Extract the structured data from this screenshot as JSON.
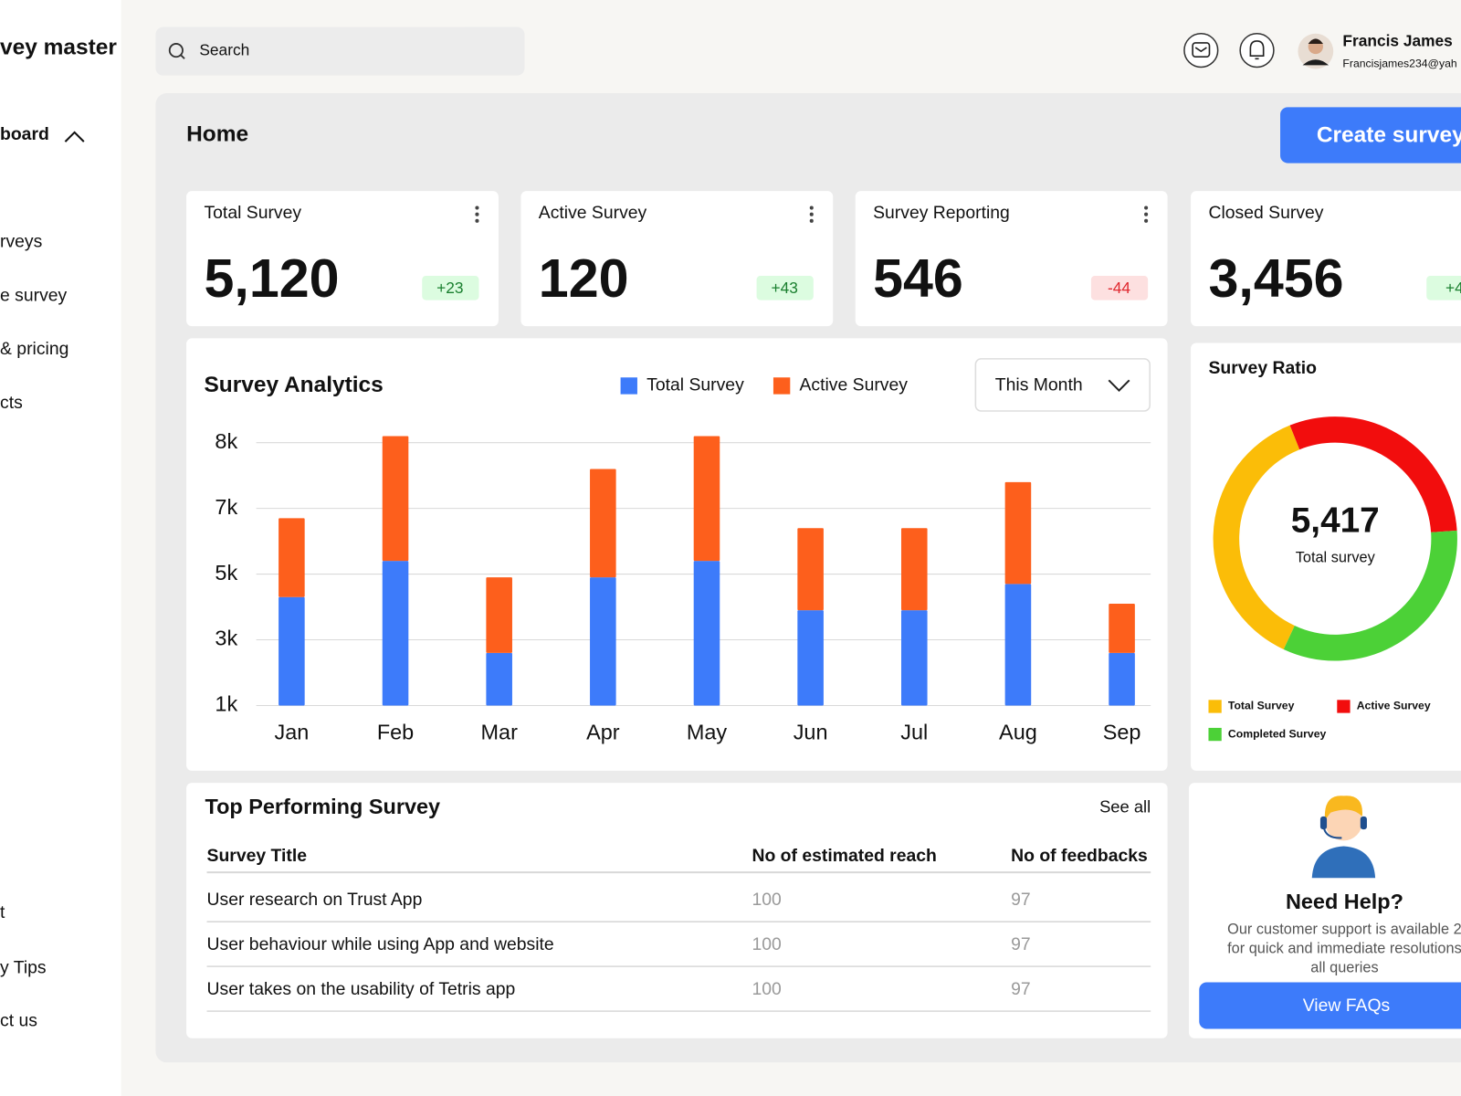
{
  "sidebar": {
    "brand": "vey master",
    "nav": [
      "board",
      "rveys",
      "e survey",
      "& pricing",
      "cts"
    ],
    "footer_nav": [
      "t",
      "y Tips",
      "ct us"
    ]
  },
  "header": {
    "search_placeholder": "Search",
    "user": {
      "name": "Francis James",
      "email": "Francisjames234@yah"
    }
  },
  "page": {
    "title": "Home",
    "create_button": "Create survey"
  },
  "stat_cards": [
    {
      "title": "Total Survey",
      "value": "5,120",
      "change": "+23"
    },
    {
      "title": "Active Survey",
      "value": "120",
      "change": "+43"
    },
    {
      "title": "Survey Reporting",
      "value": "546",
      "change": "-44"
    },
    {
      "title": "Closed Survey",
      "value": "3,456",
      "change": "+4"
    }
  ],
  "chart_data": [
    {
      "type": "bar",
      "stacked": true,
      "title": "Survey Analytics",
      "filter": "This Month",
      "categories": [
        "Jan",
        "Feb",
        "Mar",
        "Apr",
        "May",
        "Jun",
        "Jul",
        "Aug",
        "Sep"
      ],
      "series": [
        {
          "name": "Total Survey",
          "color": "#3d7bfa",
          "values": [
            4300,
            5400,
            2600,
            4900,
            5400,
            3900,
            3900,
            4700,
            2600
          ]
        },
        {
          "name": "Active Survey",
          "color": "#fd5f1c",
          "values": [
            2400,
            2700,
            2300,
            2700,
            2700,
            2500,
            2500,
            2700,
            1500
          ]
        }
      ],
      "ylim": [
        1000,
        8000
      ],
      "yticks": [
        {
          "value": 1000,
          "label": "1k"
        },
        {
          "value": 3000,
          "label": "3k"
        },
        {
          "value": 5000,
          "label": "5k"
        },
        {
          "value": 7000,
          "label": "7k"
        },
        {
          "value": 8000,
          "label": "8k"
        }
      ],
      "grid": true
    },
    {
      "type": "donut",
      "title": "Survey Ratio",
      "center_value": "5,417",
      "center_label": "Total survey",
      "categories": [
        "Total Survey",
        "Active Survey",
        "Completed Survey"
      ],
      "values": [
        37,
        30,
        33
      ],
      "colors": [
        "#fbbd08",
        "#f20d0d",
        "#4cd137"
      ]
    }
  ],
  "table": {
    "title": "Top Performing Survey",
    "see_all": "See all",
    "columns": [
      "Survey Title",
      "No of estimated reach",
      "No of feedbacks"
    ],
    "rows": [
      [
        "User research on Trust App",
        "100",
        "97"
      ],
      [
        "User behaviour while using App and website",
        "100",
        "97"
      ],
      [
        "User takes on the usability of Tetris app",
        "100",
        "97"
      ]
    ]
  },
  "help": {
    "title": "Need Help?",
    "text_lines": [
      "Our customer support is available 2",
      "for quick and immediate resolutions",
      "all queries"
    ],
    "button": "View FAQs"
  }
}
